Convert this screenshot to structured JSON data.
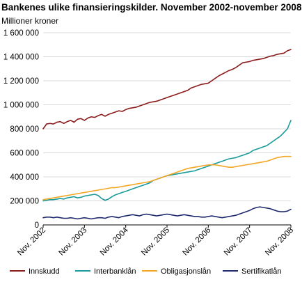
{
  "title": "Bankenes ulike finansieringskilder. November 2002-november 2008",
  "chart_data": {
    "type": "line",
    "title": "Bankenes ulike finansieringskilder. November 2002-november 2008",
    "ylabel": "Millioner kroner",
    "xlabel": "",
    "ylim": [
      0,
      1600000
    ],
    "yticks": [
      0,
      200000,
      400000,
      600000,
      800000,
      1000000,
      1200000,
      1400000,
      1600000
    ],
    "ytick_labels": [
      "0",
      "200 000",
      "400 000",
      "600 000",
      "800 000",
      "1 000 000",
      "1 200 000",
      "1 400 000",
      "1 600 000"
    ],
    "x_tick_labels": [
      "Nov. 2002",
      "Nov. 2003",
      "Nov. 2004",
      "Nov. 2005",
      "Nov. 2006",
      "Nov. 2007",
      "Nov. 2008"
    ],
    "x_range_months": [
      "Nov. 2002",
      "Nov. 2008"
    ],
    "grid": "horizontal",
    "legend_position": "bottom",
    "series": [
      {
        "name": "Innskudd",
        "color": "#8b1a1a",
        "values": [
          800000,
          840000,
          845000,
          840000,
          855000,
          860000,
          845000,
          860000,
          870000,
          855000,
          880000,
          885000,
          870000,
          890000,
          900000,
          895000,
          910000,
          920000,
          905000,
          920000,
          930000,
          940000,
          950000,
          945000,
          960000,
          970000,
          975000,
          980000,
          990000,
          1000000,
          1010000,
          1020000,
          1025000,
          1030000,
          1040000,
          1050000,
          1060000,
          1070000,
          1080000,
          1090000,
          1100000,
          1110000,
          1120000,
          1140000,
          1150000,
          1160000,
          1170000,
          1175000,
          1180000,
          1200000,
          1220000,
          1240000,
          1255000,
          1270000,
          1285000,
          1295000,
          1310000,
          1330000,
          1350000,
          1355000,
          1360000,
          1370000,
          1375000,
          1380000,
          1385000,
          1395000,
          1405000,
          1410000,
          1420000,
          1425000,
          1430000,
          1450000,
          1460000
        ]
      },
      {
        "name": "Interbanklån",
        "color": "#1a9a9a",
        "values": [
          200000,
          205000,
          210000,
          210000,
          215000,
          220000,
          215000,
          225000,
          230000,
          235000,
          225000,
          230000,
          240000,
          245000,
          250000,
          255000,
          245000,
          220000,
          205000,
          215000,
          235000,
          250000,
          260000,
          270000,
          280000,
          290000,
          300000,
          310000,
          320000,
          330000,
          340000,
          350000,
          370000,
          380000,
          390000,
          400000,
          410000,
          415000,
          420000,
          425000,
          430000,
          435000,
          440000,
          445000,
          450000,
          460000,
          470000,
          480000,
          490000,
          500000,
          510000,
          520000,
          530000,
          540000,
          550000,
          555000,
          560000,
          570000,
          580000,
          590000,
          600000,
          620000,
          630000,
          640000,
          650000,
          660000,
          680000,
          700000,
          720000,
          740000,
          770000,
          800000,
          870000
        ]
      },
      {
        "name": "Obligasjonslån",
        "color": "#f5a623",
        "values": [
          210000,
          215000,
          220000,
          225000,
          230000,
          235000,
          240000,
          245000,
          250000,
          255000,
          260000,
          265000,
          270000,
          275000,
          280000,
          285000,
          290000,
          295000,
          300000,
          305000,
          310000,
          310000,
          315000,
          320000,
          325000,
          330000,
          335000,
          340000,
          345000,
          350000,
          355000,
          360000,
          370000,
          380000,
          390000,
          400000,
          410000,
          420000,
          430000,
          440000,
          450000,
          460000,
          470000,
          475000,
          480000,
          485000,
          490000,
          495000,
          500000,
          500000,
          500000,
          495000,
          490000,
          485000,
          480000,
          480000,
          485000,
          490000,
          495000,
          500000,
          505000,
          510000,
          515000,
          520000,
          525000,
          530000,
          540000,
          550000,
          560000,
          565000,
          570000,
          570000,
          570000
        ]
      },
      {
        "name": "Sertifikatlån",
        "color": "#1f2a6e",
        "values": [
          60000,
          65000,
          65000,
          60000,
          65000,
          60000,
          55000,
          55000,
          60000,
          55000,
          50000,
          55000,
          60000,
          55000,
          50000,
          55000,
          60000,
          60000,
          55000,
          65000,
          70000,
          65000,
          60000,
          70000,
          75000,
          80000,
          85000,
          80000,
          75000,
          85000,
          90000,
          85000,
          80000,
          75000,
          80000,
          85000,
          90000,
          85000,
          80000,
          75000,
          80000,
          85000,
          80000,
          75000,
          70000,
          70000,
          65000,
          65000,
          70000,
          75000,
          70000,
          65000,
          60000,
          65000,
          70000,
          75000,
          80000,
          90000,
          100000,
          110000,
          120000,
          135000,
          145000,
          150000,
          145000,
          140000,
          135000,
          125000,
          115000,
          110000,
          110000,
          115000,
          130000
        ]
      }
    ]
  }
}
